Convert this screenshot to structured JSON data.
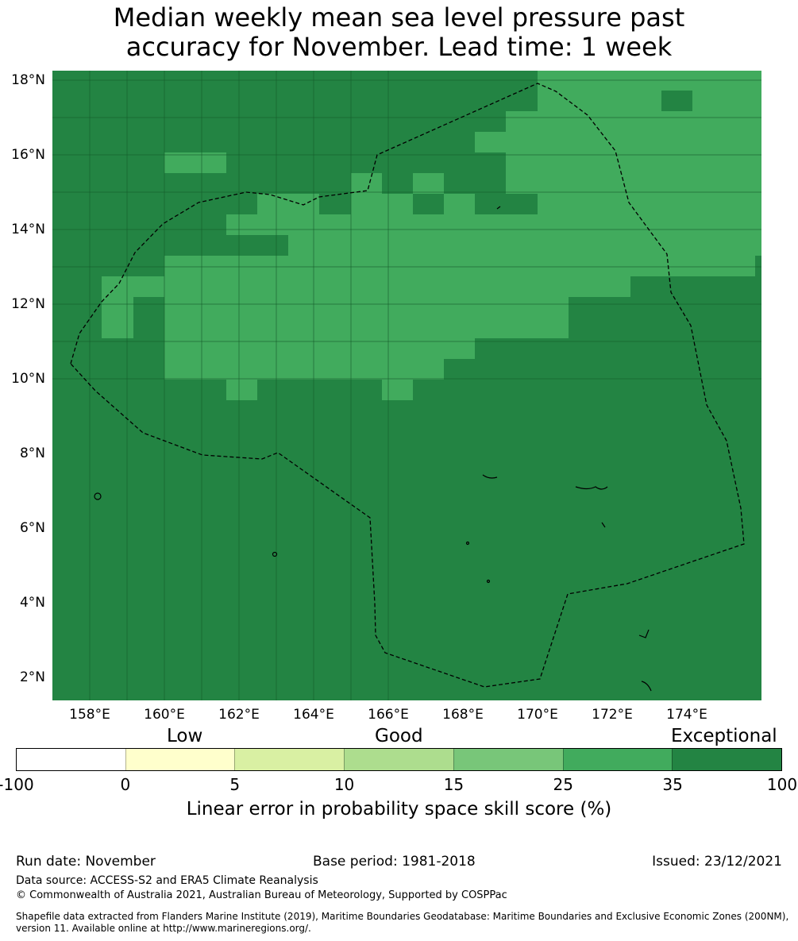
{
  "title_line1": "Median weekly mean sea level pressure past",
  "title_line2": "accuracy for November. Lead time: 1 week",
  "map": {
    "lat_labels": [
      "18°N",
      "16°N",
      "14°N",
      "12°N",
      "10°N",
      "8°N",
      "6°N",
      "4°N",
      "2°N"
    ],
    "lon_labels": [
      "158°E",
      "160°E",
      "162°E",
      "164°E",
      "166°E",
      "168°E",
      "170°E",
      "172°E",
      "174°E"
    ],
    "colors": {
      "exceptional": "#238443",
      "high": "#41ab5d"
    }
  },
  "legend": {
    "categories": [
      "Low",
      "Good",
      "Exceptional"
    ],
    "ticks": [
      "-100",
      "0",
      "5",
      "10",
      "15",
      "25",
      "35",
      "100"
    ],
    "colors": [
      "#ffffff",
      "#ffffcc",
      "#d9f0a3",
      "#addd8e",
      "#78c679",
      "#41ab5d",
      "#238443"
    ],
    "label": "Linear error in probability space skill score (%)"
  },
  "footer": {
    "run_date": "Run date: November",
    "base_period": "Base period: 1981-2018",
    "issued": "Issued: 23/12/2021",
    "data_source": "Data source: ACCESS-S2 and ERA5 Climate Reanalysis",
    "copyright": "© Commonwealth of Australia 2021, Australian Bureau of Meteorology, Supported by COSPPac",
    "shapefile_1": "Shapefile data extracted from Flanders Marine Institute (2019), Maritime Boundaries Geodatabase: Maritime Boundaries and Exclusive Economic Zones (200NM),",
    "shapefile_2": "version 11. Available online at http://www.marineregions.org/."
  }
}
